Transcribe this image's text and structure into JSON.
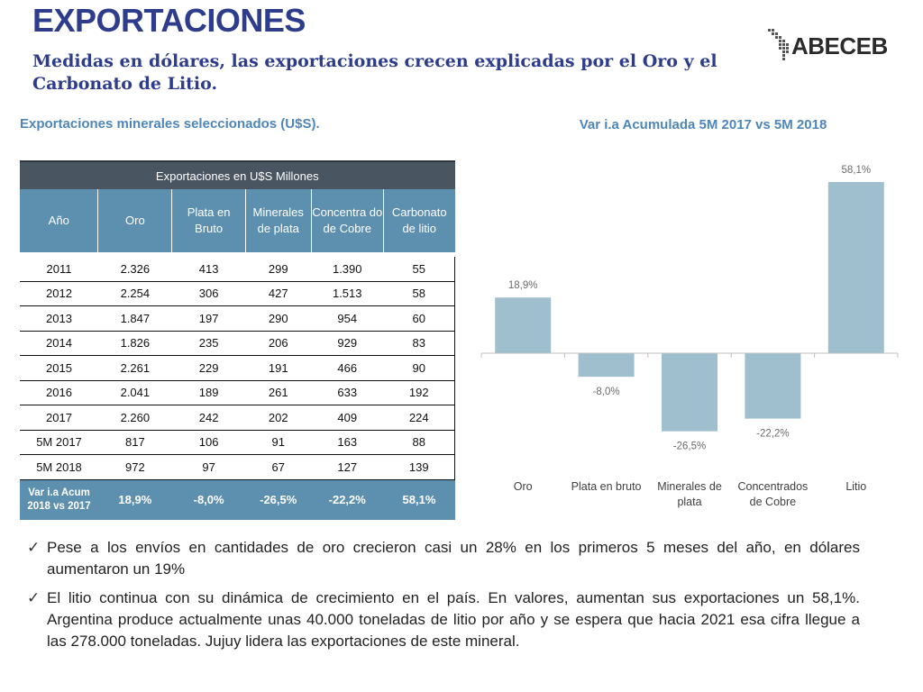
{
  "header": {
    "title": "EXPORTACIONES",
    "subtitle": "Medidas en dólares, las exportaciones crecen explicadas por el Oro y el Carbonato de Litio.",
    "logo": "ABECEB"
  },
  "table_section": {
    "title": "Exportaciones minerales seleccionados (U$S).",
    "table_title": "Exportaciones en U$S Millones",
    "columns": [
      "Año",
      "Oro",
      "Plata en Bruto",
      "Minerales de plata",
      "Concentra do de Cobre",
      "Carbonato de litio"
    ],
    "rows": [
      [
        "2011",
        "2.326",
        "413",
        "299",
        "1.390",
        "55"
      ],
      [
        "2012",
        "2.254",
        "306",
        "427",
        "1.513",
        "58"
      ],
      [
        "2013",
        "1.847",
        "197",
        "290",
        "954",
        "60"
      ],
      [
        "2014",
        "1.826",
        "235",
        "206",
        "929",
        "83"
      ],
      [
        "2015",
        "2.261",
        "229",
        "191",
        "466",
        "90"
      ],
      [
        "2016",
        "2.041",
        "189",
        "261",
        "633",
        "192"
      ],
      [
        "2017",
        "2.260",
        "242",
        "202",
        "409",
        "224"
      ],
      [
        "5M 2017",
        "817",
        "106",
        "91",
        "163",
        "88"
      ],
      [
        "5M 2018",
        "972",
        "97",
        "67",
        "127",
        "139"
      ]
    ],
    "var_row": {
      "label": "Var i.a Acum 2018 vs 2017",
      "values": [
        "18,9%",
        "-8,0%",
        "-26,5%",
        "-22,2%",
        "58,1%"
      ]
    }
  },
  "chart_data": {
    "type": "bar",
    "title": "Var i.a Acumulada 5M 2017 vs 5M 2018",
    "categories": [
      "Oro",
      "Plata en bruto",
      "Minerales de plata",
      "Concentrados de Cobre",
      "Litio"
    ],
    "values": [
      18.9,
      -8.0,
      -26.5,
      -22.2,
      58.1
    ],
    "labels": [
      "18,9%",
      "-8,0%",
      "-26,5%",
      "-22,2%",
      "58,1%"
    ],
    "unit": "%",
    "ylim": [
      -40,
      65
    ],
    "grid": false,
    "bar_color": "#9fbfcf"
  },
  "bullets": [
    "Pese a los envíos en cantidades de oro crecieron casi un 28% en los primeros 5 meses del año, en dólares aumentaron un 19%",
    "El litio continua con su dinámica de crecimiento en el país. En valores, aumentan sus exportaciones un 58,1%. Argentina produce actualmente unas 40.000 toneladas de litio por año y se espera que hacia 2021 esa cifra llegue a las 278.000 toneladas. Jujuy lidera las exportaciones de este mineral."
  ],
  "colors": {
    "title": "#2e3c8c",
    "accent_text": "#4f86b8",
    "table_header_dark": "#4a5562",
    "table_header": "#5d8fae"
  }
}
